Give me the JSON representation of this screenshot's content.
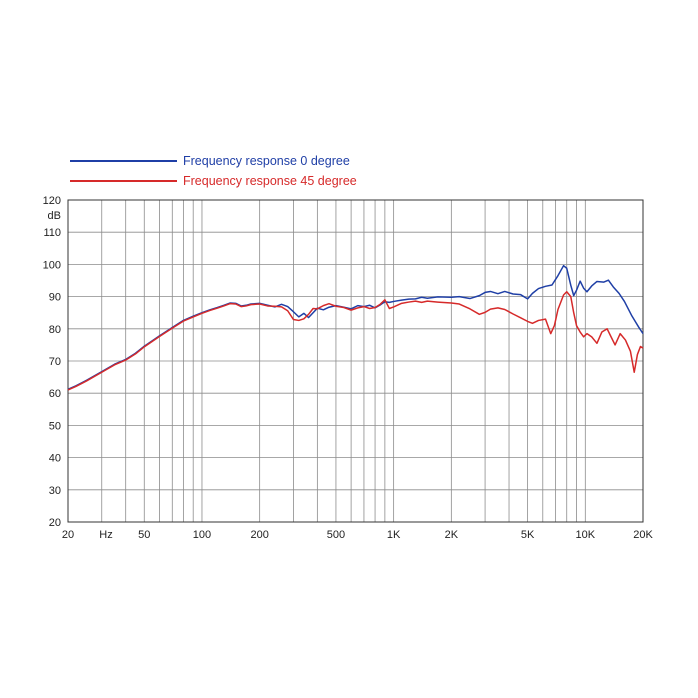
{
  "chart_data": {
    "type": "line",
    "xscale": "log",
    "xlim": [
      20,
      20000
    ],
    "ylim": [
      20,
      120
    ],
    "ylabel": "dB",
    "xunit": "Hz",
    "grid": true,
    "legend_position": "top-left",
    "y_ticks": [
      {
        "value": 120,
        "label": "120"
      },
      {
        "value": 110,
        "label": "110"
      },
      {
        "value": 100,
        "label": "100"
      },
      {
        "value": 90,
        "label": "90"
      },
      {
        "value": 80,
        "label": "80"
      },
      {
        "value": 70,
        "label": "70"
      },
      {
        "value": 60,
        "label": "60"
      },
      {
        "value": 50,
        "label": "50"
      },
      {
        "value": 40,
        "label": "40"
      },
      {
        "value": 30,
        "label": "30"
      },
      {
        "value": 20,
        "label": "20"
      }
    ],
    "x_ticks": [
      {
        "value": 20,
        "label": "20"
      },
      {
        "value": 50,
        "label": "50"
      },
      {
        "value": 100,
        "label": "100"
      },
      {
        "value": 200,
        "label": "200"
      },
      {
        "value": 500,
        "label": "500"
      },
      {
        "value": 1000,
        "label": "1K"
      },
      {
        "value": 2000,
        "label": "2K"
      },
      {
        "value": 5000,
        "label": "5K"
      },
      {
        "value": 10000,
        "label": "10K"
      },
      {
        "value": 20000,
        "label": "20K"
      }
    ],
    "x_gridlines": [
      20,
      30,
      40,
      50,
      60,
      70,
      80,
      90,
      100,
      200,
      300,
      400,
      500,
      600,
      700,
      800,
      900,
      1000,
      2000,
      3000,
      4000,
      5000,
      6000,
      7000,
      8000,
      9000,
      10000,
      20000
    ],
    "series": [
      {
        "name": "Frequency response 0 degree",
        "color": "#1f3fa6",
        "points": [
          [
            20,
            61.2
          ],
          [
            22,
            62.3
          ],
          [
            25,
            64.0
          ],
          [
            30,
            66.7
          ],
          [
            35,
            69.0
          ],
          [
            40,
            70.5
          ],
          [
            45,
            72.4
          ],
          [
            50,
            74.6
          ],
          [
            60,
            77.8
          ],
          [
            70,
            80.4
          ],
          [
            80,
            82.6
          ],
          [
            90,
            83.9
          ],
          [
            100,
            85.0
          ],
          [
            110,
            85.9
          ],
          [
            120,
            86.6
          ],
          [
            130,
            87.3
          ],
          [
            140,
            88.0
          ],
          [
            150,
            87.9
          ],
          [
            160,
            87.1
          ],
          [
            170,
            87.3
          ],
          [
            180,
            87.7
          ],
          [
            200,
            87.9
          ],
          [
            220,
            87.3
          ],
          [
            240,
            86.8
          ],
          [
            260,
            87.6
          ],
          [
            280,
            86.9
          ],
          [
            300,
            85.3
          ],
          [
            320,
            83.7
          ],
          [
            340,
            84.8
          ],
          [
            360,
            83.5
          ],
          [
            380,
            85.0
          ],
          [
            400,
            86.4
          ],
          [
            430,
            85.9
          ],
          [
            460,
            86.7
          ],
          [
            500,
            87.2
          ],
          [
            550,
            86.7
          ],
          [
            600,
            86.2
          ],
          [
            650,
            87.2
          ],
          [
            700,
            86.9
          ],
          [
            750,
            87.3
          ],
          [
            800,
            86.5
          ],
          [
            850,
            87.4
          ],
          [
            900,
            88.4
          ],
          [
            950,
            88.2
          ],
          [
            1000,
            88.5
          ],
          [
            1100,
            88.9
          ],
          [
            1200,
            89.2
          ],
          [
            1300,
            89.3
          ],
          [
            1400,
            89.8
          ],
          [
            1500,
            89.5
          ],
          [
            1700,
            89.9
          ],
          [
            2000,
            89.8
          ],
          [
            2200,
            90.0
          ],
          [
            2500,
            89.4
          ],
          [
            2800,
            90.3
          ],
          [
            3000,
            91.3
          ],
          [
            3200,
            91.6
          ],
          [
            3500,
            90.9
          ],
          [
            3800,
            91.6
          ],
          [
            4200,
            90.8
          ],
          [
            4600,
            90.6
          ],
          [
            5000,
            89.3
          ],
          [
            5300,
            91.0
          ],
          [
            5700,
            92.5
          ],
          [
            6200,
            93.2
          ],
          [
            6700,
            93.6
          ],
          [
            7200,
            96.5
          ],
          [
            7700,
            99.6
          ],
          [
            8000,
            98.8
          ],
          [
            8400,
            93.5
          ],
          [
            8700,
            90.3
          ],
          [
            9000,
            92.0
          ],
          [
            9400,
            94.8
          ],
          [
            9800,
            92.6
          ],
          [
            10200,
            91.5
          ],
          [
            10800,
            93.3
          ],
          [
            11500,
            94.7
          ],
          [
            12500,
            94.5
          ],
          [
            13200,
            95.1
          ],
          [
            14000,
            93.0
          ],
          [
            15000,
            91.0
          ],
          [
            16000,
            88.5
          ],
          [
            17500,
            84.0
          ],
          [
            19000,
            80.5
          ],
          [
            20000,
            78.5
          ]
        ]
      },
      {
        "name": "Frequency response 45 degree",
        "color": "#d62a2a",
        "points": [
          [
            20,
            61.0
          ],
          [
            22,
            62.1
          ],
          [
            25,
            63.8
          ],
          [
            30,
            66.5
          ],
          [
            35,
            68.8
          ],
          [
            40,
            70.3
          ],
          [
            45,
            72.2
          ],
          [
            50,
            74.4
          ],
          [
            60,
            77.6
          ],
          [
            70,
            80.2
          ],
          [
            80,
            82.4
          ],
          [
            90,
            83.7
          ],
          [
            100,
            84.8
          ],
          [
            110,
            85.7
          ],
          [
            120,
            86.4
          ],
          [
            130,
            87.1
          ],
          [
            140,
            87.8
          ],
          [
            150,
            87.7
          ],
          [
            160,
            86.9
          ],
          [
            170,
            87.1
          ],
          [
            180,
            87.5
          ],
          [
            200,
            87.7
          ],
          [
            220,
            87.1
          ],
          [
            240,
            87.0
          ],
          [
            260,
            86.8
          ],
          [
            280,
            85.6
          ],
          [
            300,
            82.9
          ],
          [
            320,
            82.6
          ],
          [
            340,
            83.1
          ],
          [
            360,
            84.5
          ],
          [
            380,
            86.3
          ],
          [
            400,
            86.2
          ],
          [
            430,
            87.2
          ],
          [
            460,
            87.8
          ],
          [
            500,
            87.0
          ],
          [
            550,
            86.6
          ],
          [
            600,
            85.8
          ],
          [
            650,
            86.5
          ],
          [
            700,
            86.9
          ],
          [
            750,
            86.3
          ],
          [
            800,
            86.6
          ],
          [
            850,
            87.6
          ],
          [
            900,
            89.0
          ],
          [
            950,
            86.3
          ],
          [
            1000,
            86.8
          ],
          [
            1100,
            87.9
          ],
          [
            1200,
            88.3
          ],
          [
            1300,
            88.6
          ],
          [
            1400,
            88.2
          ],
          [
            1500,
            88.6
          ],
          [
            1700,
            88.3
          ],
          [
            2000,
            88.0
          ],
          [
            2200,
            87.7
          ],
          [
            2500,
            86.2
          ],
          [
            2800,
            84.5
          ],
          [
            3000,
            85.1
          ],
          [
            3200,
            86.1
          ],
          [
            3500,
            86.5
          ],
          [
            3800,
            86.0
          ],
          [
            4200,
            84.6
          ],
          [
            4600,
            83.4
          ],
          [
            5000,
            82.3
          ],
          [
            5300,
            81.7
          ],
          [
            5700,
            82.6
          ],
          [
            6200,
            83.0
          ],
          [
            6600,
            78.5
          ],
          [
            6900,
            81.0
          ],
          [
            7200,
            86.0
          ],
          [
            7700,
            90.5
          ],
          [
            8000,
            91.5
          ],
          [
            8400,
            90.0
          ],
          [
            8700,
            85.0
          ],
          [
            9000,
            81.0
          ],
          [
            9400,
            79.0
          ],
          [
            9800,
            77.5
          ],
          [
            10200,
            78.5
          ],
          [
            10800,
            77.5
          ],
          [
            11500,
            75.5
          ],
          [
            12200,
            79.0
          ],
          [
            13000,
            80.0
          ],
          [
            13500,
            78.0
          ],
          [
            14300,
            75.0
          ],
          [
            15200,
            78.5
          ],
          [
            16200,
            76.5
          ],
          [
            17200,
            73.0
          ],
          [
            18000,
            66.5
          ],
          [
            18700,
            72.0
          ],
          [
            19400,
            74.5
          ],
          [
            20000,
            74.0
          ]
        ]
      }
    ]
  }
}
